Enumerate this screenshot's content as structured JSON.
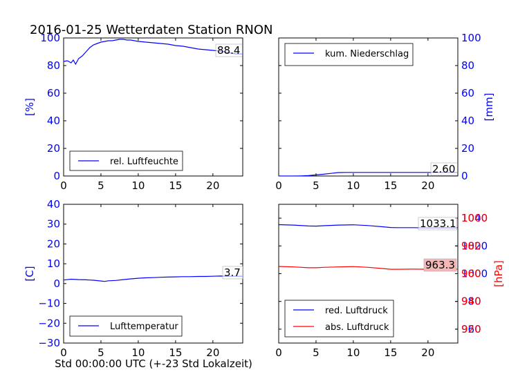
{
  "title": "2016-01-25 Wetterdaten Station RNON",
  "xlabel": "Std 00:00:00 UTC (+-23 Std Lokalzeit)",
  "colors": {
    "blue": "#0000ff",
    "red": "#ff0000",
    "label_box_red": "#f4b8b8"
  },
  "chart_data": [
    {
      "type": "line",
      "panel": "top-left",
      "ylabel": "[%]",
      "xlim": [
        0,
        24
      ],
      "ylim": [
        0,
        100
      ],
      "xticks": [
        "0",
        "5",
        "10",
        "15",
        "20"
      ],
      "yticks": [
        "0",
        "20",
        "40",
        "60",
        "80",
        "100"
      ],
      "legend": [
        "rel. Luftfeuchte"
      ],
      "legend_position": "lower-left",
      "last_value_label": "88.4",
      "series": [
        {
          "name": "rel. Luftfeuchte",
          "color": "#0000ff",
          "x": [
            0,
            0.5,
            1,
            1.3,
            1.6,
            2,
            2.5,
            3,
            3.5,
            4,
            4.5,
            5,
            5.5,
            6,
            6.5,
            7,
            7.5,
            8,
            8.5,
            9,
            9.5,
            10,
            11,
            12,
            13,
            14,
            15,
            16,
            17,
            18,
            19,
            20,
            21,
            22,
            23,
            24
          ],
          "y": [
            83,
            83.5,
            82,
            84,
            81,
            85,
            87,
            90,
            93,
            95,
            96,
            97,
            97.5,
            98,
            98,
            98.5,
            99,
            99,
            98.5,
            98.5,
            98,
            97.5,
            97,
            96.5,
            96,
            95.5,
            94.5,
            94,
            93,
            92,
            91.5,
            91,
            90.5,
            89.5,
            88.5,
            88.4
          ]
        }
      ]
    },
    {
      "type": "line",
      "panel": "top-right",
      "ylabel": "[mm]",
      "ylabel_side": "right",
      "xlim": [
        0,
        24
      ],
      "ylim": [
        0,
        100
      ],
      "xticks": [
        "0",
        "5",
        "10",
        "15",
        "20"
      ],
      "yticks": [
        "0",
        "20",
        "40",
        "60",
        "80",
        "100"
      ],
      "legend": [
        "kum. Niederschlag"
      ],
      "legend_position": "upper-left",
      "last_value_label": "2.60",
      "series": [
        {
          "name": "kum. Niederschlag",
          "color": "#0000ff",
          "x": [
            0,
            2,
            3,
            4,
            5,
            6,
            7,
            8,
            9,
            10,
            12,
            15,
            20,
            24
          ],
          "y": [
            0,
            0,
            0.1,
            0.3,
            0.8,
            1.3,
            1.9,
            2.5,
            2.6,
            2.6,
            2.6,
            2.6,
            2.6,
            2.6
          ]
        }
      ]
    },
    {
      "type": "line",
      "panel": "bottom-left",
      "ylabel": "[C]",
      "xlim": [
        0,
        24
      ],
      "ylim": [
        -30,
        40
      ],
      "xticks": [
        "0",
        "5",
        "10",
        "15",
        "20"
      ],
      "yticks": [
        "−30",
        "−20",
        "−10",
        "0",
        "10",
        "20",
        "30",
        "40"
      ],
      "legend": [
        "Lufttemperatur"
      ],
      "legend_position": "lower-left",
      "last_value_label": "3.7",
      "series": [
        {
          "name": "Lufttemperatur",
          "color": "#0000ff",
          "x": [
            0,
            1,
            2,
            3,
            4,
            5,
            5.5,
            6,
            7,
            8,
            9,
            10,
            11,
            12,
            13,
            14,
            15,
            16,
            17,
            18,
            19,
            20,
            21,
            22,
            23,
            24
          ],
          "y": [
            1.8,
            2.2,
            2.0,
            1.9,
            1.7,
            1.3,
            1.1,
            1.4,
            1.6,
            2.0,
            2.4,
            2.7,
            2.9,
            3.0,
            3.2,
            3.3,
            3.4,
            3.5,
            3.5,
            3.6,
            3.6,
            3.7,
            3.8,
            3.7,
            3.7,
            3.7
          ]
        }
      ]
    },
    {
      "type": "line",
      "panel": "bottom-right",
      "ylabel": "[hPa]",
      "ylabel_side": "right",
      "xlim": [
        0,
        24
      ],
      "ylim": [
        950,
        1050
      ],
      "ylim_right": [
        910,
        1010
      ],
      "xticks": [
        "0",
        "5",
        "10",
        "15",
        "20"
      ],
      "yticks": [
        "960",
        "980",
        "1000",
        "1020",
        "1040"
      ],
      "yticks_right": [
        "920",
        "940",
        "960",
        "980",
        "1000"
      ],
      "legend": [
        "red. Luftdruck",
        "abs. Luftdruck"
      ],
      "legend_position": "lower-left",
      "last_value_label": "1033.1",
      "last_value_label_2": "963.3",
      "series": [
        {
          "name": "red. Luftdruck",
          "color": "#0000ff",
          "axis": "left",
          "x": [
            0,
            2,
            4,
            5,
            6,
            8,
            10,
            12,
            14,
            15,
            16,
            18,
            20,
            22,
            24
          ],
          "y": [
            1035.3,
            1035.0,
            1034.4,
            1034.3,
            1034.6,
            1035.0,
            1035.2,
            1034.7,
            1033.8,
            1033.3,
            1033.2,
            1033.2,
            1033.0,
            1033.1,
            1033.1
          ]
        },
        {
          "name": "abs. Luftdruck",
          "color": "#ff0000",
          "axis": "right",
          "x": [
            0,
            2,
            4,
            5,
            6,
            8,
            10,
            12,
            14,
            15,
            16,
            18,
            20,
            22,
            24
          ],
          "y": [
            965.2,
            964.9,
            964.3,
            964.3,
            964.6,
            964.9,
            965.1,
            964.6,
            963.7,
            963.2,
            963.2,
            963.3,
            963.2,
            963.3,
            963.3
          ]
        }
      ]
    }
  ]
}
